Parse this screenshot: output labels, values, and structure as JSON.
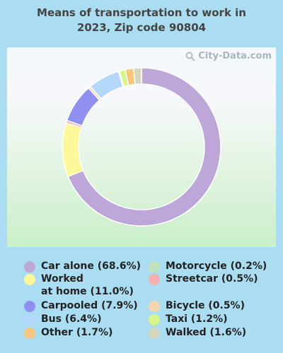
{
  "chart_data": {
    "type": "pie",
    "title": "Means of transportation to work in 2023, Zip code 90804",
    "title_lines": [
      "Means of transportation to work in",
      "2023, Zip code 90804"
    ],
    "donut": true,
    "slices": [
      {
        "label": "Car alone",
        "value": 68.6,
        "color": "#bca7d8"
      },
      {
        "label": "Worked at home",
        "value": 11.0,
        "color": "#fdf99a"
      },
      {
        "label": "Streetcar",
        "value": 0.5,
        "color": "#f2b1ac"
      },
      {
        "label": "Carpooled",
        "value": 7.9,
        "color": "#8f8ff0"
      },
      {
        "label": "Bicycle",
        "value": 0.5,
        "color": "#f6d6ae"
      },
      {
        "label": "Bus",
        "value": 6.4,
        "color": "#b4d8fb"
      },
      {
        "label": "Motorcycle",
        "value": 0.2,
        "color": "#bfe3be"
      },
      {
        "label": "Taxi",
        "value": 1.2,
        "color": "#d6f58a"
      },
      {
        "label": "Other",
        "value": 1.7,
        "color": "#f7c57c"
      },
      {
        "label": "Walked",
        "value": 1.6,
        "color": "#d5d6bb"
      }
    ],
    "legend": [
      {
        "text": "Car alone (68.6%)",
        "color": "#bca7d8"
      },
      {
        "text": "Worked\nat home (11.0%)",
        "color": "#fdf99a"
      },
      {
        "text": "Carpooled (7.9%)",
        "color": "#8f8ff0"
      },
      {
        "text": "Bus (6.4%)",
        "color": "#b4d8fb"
      },
      {
        "text": "Other (1.7%)",
        "color": "#f7c57c"
      },
      {
        "text": "Motorcycle (0.2%)",
        "color": "#bfe3be"
      },
      {
        "text": "Streetcar (0.5%)",
        "color": "#f2b1ac"
      },
      {
        "text": "Bicycle (0.5%)",
        "color": "#f6d6ae"
      },
      {
        "text": "Taxi (1.2%)",
        "color": "#d6f58a"
      },
      {
        "text": "Walked (1.6%)",
        "color": "#d5d6bb"
      }
    ]
  },
  "watermark": "City-Data.com",
  "watermark_icon": "magnifier-icon"
}
